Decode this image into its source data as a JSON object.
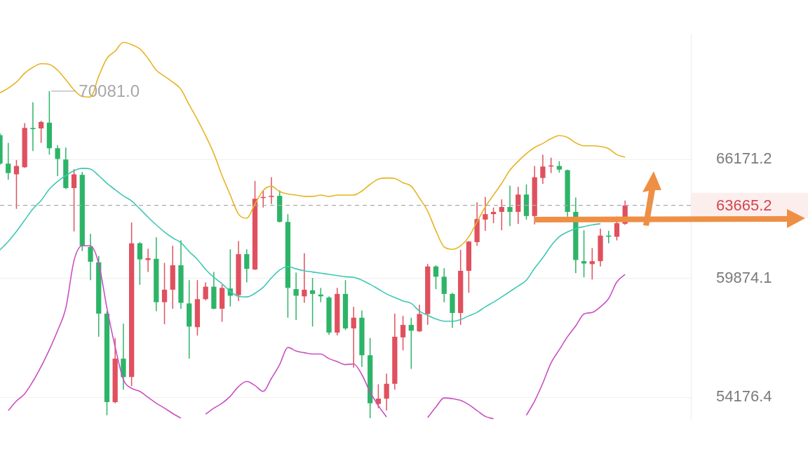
{
  "chart_data": {
    "type": "candlestick",
    "categories": [
      null,
      null,
      null,
      null,
      null,
      null,
      null,
      null,
      null,
      null,
      null,
      null,
      null,
      null,
      null,
      null,
      null,
      null,
      null,
      null,
      null,
      null,
      null,
      null,
      null,
      null,
      null,
      null,
      null,
      null,
      null,
      null,
      null,
      null,
      null,
      null,
      null,
      null,
      null,
      null,
      null,
      null,
      null,
      null,
      null,
      null,
      null,
      null,
      null,
      null,
      null,
      null,
      null,
      null,
      null,
      null,
      null,
      null,
      null,
      null,
      null,
      null,
      null,
      null,
      null,
      null,
      null,
      null,
      null,
      null,
      null,
      null,
      null,
      null,
      null,
      null,
      null,
      null,
      null,
      null,
      null,
      null,
      null,
      null,
      null
    ],
    "ohlc": [
      [
        67540,
        67640,
        65870,
        65940
      ],
      [
        65940,
        67100,
        65060,
        65420
      ],
      [
        65350,
        66140,
        63480,
        65810
      ],
      [
        65740,
        68220,
        65710,
        67950
      ],
      [
        67950,
        69430,
        66640,
        67880
      ],
      [
        67920,
        68360,
        67100,
        68290
      ],
      [
        68250,
        70081.0,
        66440,
        66800
      ],
      [
        66800,
        66970,
        65250,
        66200
      ],
      [
        66170,
        66840,
        64540,
        64600
      ],
      [
        64600,
        65640,
        62290,
        65350
      ],
      [
        65320,
        65480,
        61270,
        61540
      ],
      [
        61480,
        62160,
        59790,
        60720
      ],
      [
        60690,
        61020,
        57010,
        58130
      ],
      [
        58130,
        58250,
        53370,
        53960
      ],
      [
        53960,
        56950,
        53910,
        55970
      ],
      [
        55970,
        57640,
        54530,
        55110
      ],
      [
        55110,
        62760,
        54690,
        61670
      ],
      [
        61670,
        61730,
        59550,
        60840
      ],
      [
        60810,
        61390,
        60200,
        60900
      ],
      [
        60870,
        61980,
        58250,
        58690
      ],
      [
        58690,
        60660,
        57610,
        59310
      ],
      [
        59310,
        61540,
        58370,
        60540
      ],
      [
        60540,
        61820,
        58370,
        58660
      ],
      [
        58630,
        59790,
        55970,
        57500
      ],
      [
        57470,
        59790,
        57070,
        58840
      ],
      [
        58840,
        59670,
        58780,
        59460
      ],
      [
        59460,
        60200,
        58340,
        58370
      ],
      [
        58370,
        59550,
        57730,
        59400
      ],
      [
        59370,
        61360,
        58480,
        59010
      ],
      [
        59040,
        61790,
        58750,
        61110
      ],
      [
        61110,
        61360,
        59670,
        60360
      ],
      [
        60330,
        64990,
        60300,
        64020
      ],
      [
        64060,
        64470,
        63550,
        64120
      ],
      [
        64120,
        65190,
        63740,
        64180
      ],
      [
        64180,
        64470,
        62760,
        62790
      ],
      [
        62790,
        63200,
        57930,
        59400
      ],
      [
        59340,
        60170,
        57820,
        59010
      ],
      [
        58980,
        61150,
        58660,
        59310
      ],
      [
        59280,
        59900,
        57500,
        59100
      ],
      [
        59070,
        59400,
        58690,
        58980
      ],
      [
        58920,
        58980,
        57100,
        57210
      ],
      [
        57210,
        59400,
        57070,
        59100
      ],
      [
        59100,
        59790,
        57330,
        57410
      ],
      [
        57410,
        58460,
        55550,
        57930
      ],
      [
        57930,
        58280,
        55580,
        56130
      ],
      [
        56130,
        56950,
        53240,
        53910
      ],
      [
        53880,
        54780,
        53690,
        54120
      ],
      [
        54120,
        55270,
        53580,
        54800
      ],
      [
        54800,
        58130,
        54530,
        57010
      ],
      [
        56980,
        58020,
        56360,
        57580
      ],
      [
        57580,
        57930,
        55490,
        57300
      ],
      [
        57270,
        58570,
        57240,
        58110
      ],
      [
        58110,
        60600,
        57580,
        60480
      ],
      [
        60480,
        60540,
        59340,
        59960
      ],
      [
        59960,
        60390,
        58690,
        59100
      ],
      [
        59100,
        59160,
        57440,
        58160
      ],
      [
        58160,
        61330,
        57580,
        60260
      ],
      [
        60260,
        61790,
        59160,
        61760
      ],
      [
        61730,
        63830,
        61540,
        62940
      ],
      [
        62910,
        64120,
        62320,
        63200
      ],
      [
        63200,
        63550,
        62720,
        63320
      ],
      [
        63320,
        63990,
        62350,
        63580
      ],
      [
        63580,
        64730,
        62570,
        63320
      ],
      [
        63320,
        64670,
        62690,
        64250
      ],
      [
        64250,
        64800,
        62910,
        63100
      ],
      [
        63100,
        65810,
        62660,
        65190
      ],
      [
        65150,
        66440,
        64830,
        65780
      ],
      [
        65780,
        66270,
        65420,
        65840
      ],
      [
        65810,
        66070,
        65450,
        65610
      ],
      [
        65580,
        65610,
        63070,
        63320
      ],
      [
        63320,
        64090,
        60140,
        60810
      ],
      [
        60750,
        62350,
        59930,
        60630
      ],
      [
        60600,
        61420,
        59820,
        60750
      ],
      [
        60750,
        62440,
        60480,
        62070
      ],
      [
        62070,
        62320,
        61670,
        62010
      ],
      [
        62010,
        63070,
        61820,
        62720
      ],
      [
        62690,
        63930,
        62630,
        63665.2
      ],
      null,
      null,
      null,
      null,
      null,
      null,
      null,
      null
    ],
    "colors": [
      "#2db468",
      "#2db468",
      "#e0505e",
      "#e0505e",
      "#2db468",
      "#e0505e",
      "#2db468",
      "#2db468",
      "#2db468",
      "#e0505e",
      "#2db468",
      "#2db468",
      "#2db468",
      "#2db468",
      "#e0505e",
      "#2db468",
      "#e0505e",
      "#2db468",
      "#e0505e",
      "#2db468",
      "#e0505e",
      "#e0505e",
      "#2db468",
      "#2db468",
      "#e0505e",
      "#e0505e",
      "#2db468",
      "#e0505e",
      "#2db468",
      "#e0505e",
      "#2db468",
      "#e0505e",
      "#e0505e",
      "#e0505e",
      "#2db468",
      "#2db468",
      "#2db468",
      "#e0505e",
      "#2db468",
      "#2db468",
      "#2db468",
      "#e0505e",
      "#2db468",
      "#e0505e",
      "#2db468",
      "#2db468",
      "#e0505e",
      "#e0505e",
      "#e0505e",
      "#e0505e",
      "#2db468",
      "#e0505e",
      "#e0505e",
      "#2db468",
      "#2db468",
      "#2db468",
      "#e0505e",
      "#e0505e",
      "#e0505e",
      "#e0505e",
      "#e0505e",
      "#e0505e",
      "#2db468",
      "#e0505e",
      "#2db468",
      "#e0505e",
      "#e0505e",
      "#e0505e",
      "#2db468",
      "#2db468",
      "#2db468",
      "#2db468",
      "#e0505e",
      "#e0505e",
      "#2db468",
      "#e0505e",
      "#e0505e",
      null,
      null,
      null,
      null,
      null,
      null,
      null,
      null
    ],
    "series": [
      {
        "type": "line",
        "color": "#e6b422",
        "values": [
          69980,
          70260,
          70620,
          71150,
          71500,
          71720,
          71680,
          71330,
          70760,
          70160,
          69770,
          69740,
          70970,
          72040,
          72480,
          73020,
          72880,
          72620,
          72040,
          71330,
          70970,
          70620,
          70190,
          69290,
          68430,
          67510,
          66500,
          65280,
          64220,
          63200,
          62980,
          63740,
          64470,
          64700,
          64410,
          64280,
          64220,
          64150,
          64150,
          64220,
          64150,
          64220,
          64220,
          64220,
          64440,
          64800,
          65090,
          65150,
          65120,
          64890,
          64700,
          64060,
          63360,
          62320,
          61480,
          61360,
          61540,
          62010,
          62790,
          63580,
          64220,
          64860,
          65580,
          66070,
          66500,
          66840,
          67070,
          67340,
          67510,
          67410,
          67100,
          66940,
          66940,
          66900,
          66770,
          66440,
          66300,
          null,
          null,
          null,
          null,
          null,
          null,
          null,
          null
        ]
      },
      {
        "type": "line",
        "color": "#3ec8b2",
        "values": [
          61330,
          61760,
          62290,
          62880,
          63480,
          63930,
          64540,
          64960,
          65280,
          65550,
          65680,
          65640,
          65280,
          64860,
          64510,
          64180,
          63900,
          63480,
          63040,
          62630,
          62260,
          61950,
          61700,
          61240,
          60840,
          60330,
          59930,
          59610,
          59220,
          58980,
          58950,
          59130,
          59430,
          59900,
          60300,
          60480,
          60360,
          60260,
          60200,
          60140,
          60080,
          60020,
          59960,
          59930,
          59790,
          59580,
          59340,
          59100,
          58920,
          58750,
          58630,
          58250,
          58050,
          57870,
          57760,
          57760,
          57840,
          58020,
          58190,
          58460,
          58690,
          58950,
          59220,
          59490,
          59790,
          60390,
          60930,
          61540,
          62010,
          62260,
          62440,
          62540,
          62630,
          62690,
          null,
          null,
          null,
          null,
          null,
          null,
          null,
          null,
          null,
          null,
          null
        ]
      },
      {
        "type": "line",
        "color": "#c94fc2",
        "values": [
          null,
          53580,
          54010,
          54340,
          54910,
          55600,
          56390,
          57300,
          58400,
          60780,
          61540,
          61540,
          60630,
          58400,
          56530,
          55000,
          54590,
          54450,
          54180,
          53910,
          53690,
          53450,
          53240,
          null,
          null,
          53420,
          53690,
          53910,
          54230,
          54670,
          54910,
          54720,
          54450,
          55050,
          55690,
          56500,
          56330,
          56250,
          56190,
          56190,
          55970,
          55830,
          55690,
          55720,
          55220,
          54420,
          53800,
          53290,
          null,
          null,
          null,
          null,
          53260,
          53740,
          54150,
          54120,
          54040,
          53850,
          53580,
          53320,
          53210,
          null,
          null,
          null,
          53370,
          54010,
          54830,
          55770,
          56390,
          57010,
          57530,
          58110,
          58190,
          58460,
          58870,
          59700,
          60080,
          null,
          null,
          null,
          null,
          null,
          null,
          null,
          null
        ]
      }
    ],
    "log": true,
    "ylim": [
      53180,
      73500
    ],
    "yticks": [
      54176.4,
      59874.1,
      66171.2
    ],
    "ref_lines": [
      {
        "axis": "y",
        "value": 63665.2,
        "label": "63665.2",
        "color": "#aaaaaa",
        "line_style": "dashed"
      }
    ],
    "annotations": [
      "70081.0"
    ],
    "grid": "y",
    "tick_labels": "y",
    "marker": "none"
  }
}
